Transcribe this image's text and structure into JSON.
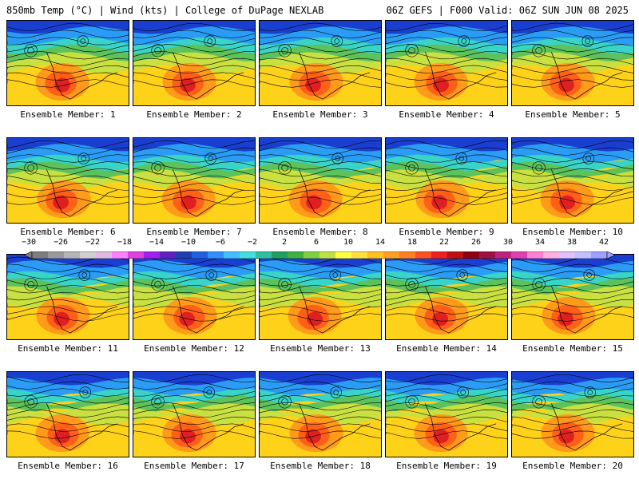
{
  "header": {
    "left": "850mb Temp (°C) | Wind (kts) | College of DuPage NEXLAB",
    "right": "06Z GEFS | F000 Valid: 06Z SUN JUN 08 2025"
  },
  "panels": [
    {
      "label": "Ensemble Member: 1"
    },
    {
      "label": "Ensemble Member: 2"
    },
    {
      "label": "Ensemble Member: 3"
    },
    {
      "label": "Ensemble Member: 4"
    },
    {
      "label": "Ensemble Member: 5"
    },
    {
      "label": "Ensemble Member: 6"
    },
    {
      "label": "Ensemble Member: 7"
    },
    {
      "label": "Ensemble Member: 8"
    },
    {
      "label": "Ensemble Member: 9"
    },
    {
      "label": "Ensemble Member: 10"
    },
    {
      "label": "Ensemble Member: 11"
    },
    {
      "label": "Ensemble Member: 12"
    },
    {
      "label": "Ensemble Member: 13"
    },
    {
      "label": "Ensemble Member: 14"
    },
    {
      "label": "Ensemble Member: 15"
    },
    {
      "label": "Ensemble Member: 16"
    },
    {
      "label": "Ensemble Member: 17"
    },
    {
      "label": "Ensemble Member: 18"
    },
    {
      "label": "Ensemble Member: 19"
    },
    {
      "label": "Ensemble Member: 20"
    }
  ],
  "colorbar": {
    "labels": [
      "−30",
      "−26",
      "−22",
      "−18",
      "−14",
      "−10",
      "−6",
      "−2",
      "2",
      "6",
      "10",
      "14",
      "18",
      "22",
      "26",
      "30",
      "34",
      "38",
      "42"
    ],
    "colors": [
      "#7d7d7d",
      "#9a9a9a",
      "#b4b4b4",
      "#cfcfcf",
      "#e0b8e0",
      "#ff80ff",
      "#e040e0",
      "#a020f0",
      "#6020c0",
      "#2040b0",
      "#2060e0",
      "#3090ff",
      "#40c0ff",
      "#40e0e0",
      "#30c0a0",
      "#20a060",
      "#40b040",
      "#80d040",
      "#c0e040",
      "#ffff40",
      "#ffe040",
      "#ffc020",
      "#ffa020",
      "#ff8020",
      "#ff5020",
      "#f02020",
      "#c01010",
      "#900010",
      "#a01040",
      "#c02080",
      "#e040b0",
      "#ff80d0",
      "#ffb0e0",
      "#e0c0ff",
      "#c0c0ff",
      "#a0a0ff"
    ]
  },
  "map_colors": {
    "polar": "#1a3fd0",
    "cold": "#2a9cf5",
    "cool": "#38d4c8",
    "mild": "#5cc25c",
    "temperate": "#c8e040",
    "warm": "#ffd21a",
    "hot": "#ff9a1a",
    "hotter": "#ff6018",
    "hottest": "#e02020",
    "contour": "#000000"
  }
}
